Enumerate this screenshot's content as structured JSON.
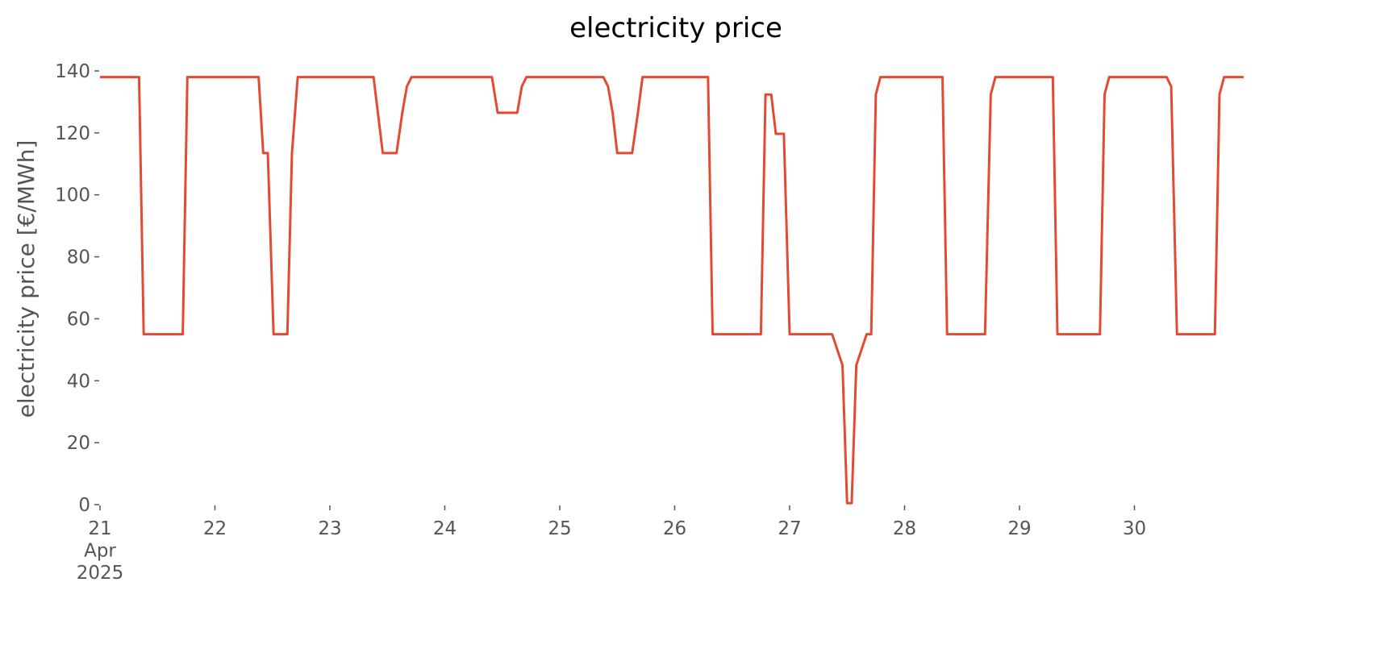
{
  "chart_data": {
    "type": "line",
    "title": "electricity price",
    "ylabel": "electricity price [€/MWh]",
    "x": [
      21.0,
      21.34,
      21.38,
      21.72,
      21.76,
      22.38,
      22.42,
      22.46,
      22.51,
      22.63,
      22.67,
      22.72,
      23.38,
      23.46,
      23.58,
      23.63,
      23.67,
      23.71,
      24.41,
      24.46,
      24.63,
      24.67,
      24.71,
      25.38,
      25.42,
      25.46,
      25.5,
      25.63,
      25.68,
      25.72,
      26.29,
      26.33,
      26.75,
      26.79,
      26.84,
      26.88,
      26.95,
      27.0,
      27.37,
      27.46,
      27.5,
      27.54,
      27.58,
      27.67,
      27.71,
      27.75,
      27.79,
      28.33,
      28.37,
      28.7,
      28.75,
      28.79,
      29.29,
      29.33,
      29.7,
      29.74,
      29.78,
      30.28,
      30.32,
      30.37,
      30.7,
      30.74,
      30.78,
      30.95
    ],
    "series": [
      {
        "name": "electricity price",
        "color": "#e24a33",
        "values": [
          138,
          138,
          55,
          55,
          138,
          138,
          113.5,
          113.5,
          55,
          55,
          113.5,
          138,
          138,
          113.5,
          113.5,
          126.5,
          135,
          138,
          138,
          126.5,
          126.5,
          135,
          138,
          138,
          135,
          126.5,
          113.5,
          113.5,
          126.5,
          138,
          138,
          55,
          55,
          132.4,
          132.4,
          119.7,
          119.7,
          55,
          55,
          45,
          0.5,
          0.5,
          45,
          55,
          55,
          132.4,
          138,
          138,
          55,
          55,
          132.4,
          138,
          138,
          55,
          55,
          132.4,
          138,
          138,
          135,
          55,
          55,
          132.4,
          138,
          138
        ]
      }
    ],
    "xlim": [
      21,
      31
    ],
    "xticks": [
      {
        "value": 21,
        "label": "21\nApr\n2025"
      },
      22,
      23,
      24,
      25,
      26,
      27,
      28,
      29,
      30
    ],
    "ylim": [
      0,
      140
    ],
    "yticks": [
      0,
      20,
      40,
      60,
      80,
      100,
      120,
      140
    ],
    "grid": false
  }
}
